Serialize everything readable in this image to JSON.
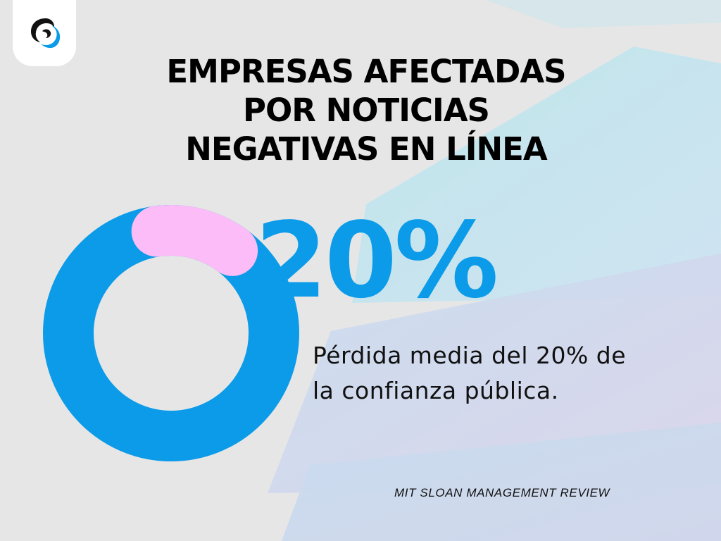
{
  "header": {
    "title_lines": [
      "EMPRESAS AFECTADAS",
      "POR NOTICIAS",
      "NEGATIVAS EN LÍNEA"
    ]
  },
  "stat": {
    "percent_label": "20%",
    "percent_value": 20,
    "description_lines": [
      "Pérdida media del 20% de",
      "la confianza pública."
    ]
  },
  "source": {
    "text": "MIT SLOAN MANAGEMENT REVIEW"
  },
  "colors": {
    "accent_blue": "#0b9be8",
    "accent_pink": "#fbbcf7",
    "background": "#e6e6e6",
    "text": "#000000"
  },
  "icons": {
    "logo": "brand-logo-icon"
  }
}
